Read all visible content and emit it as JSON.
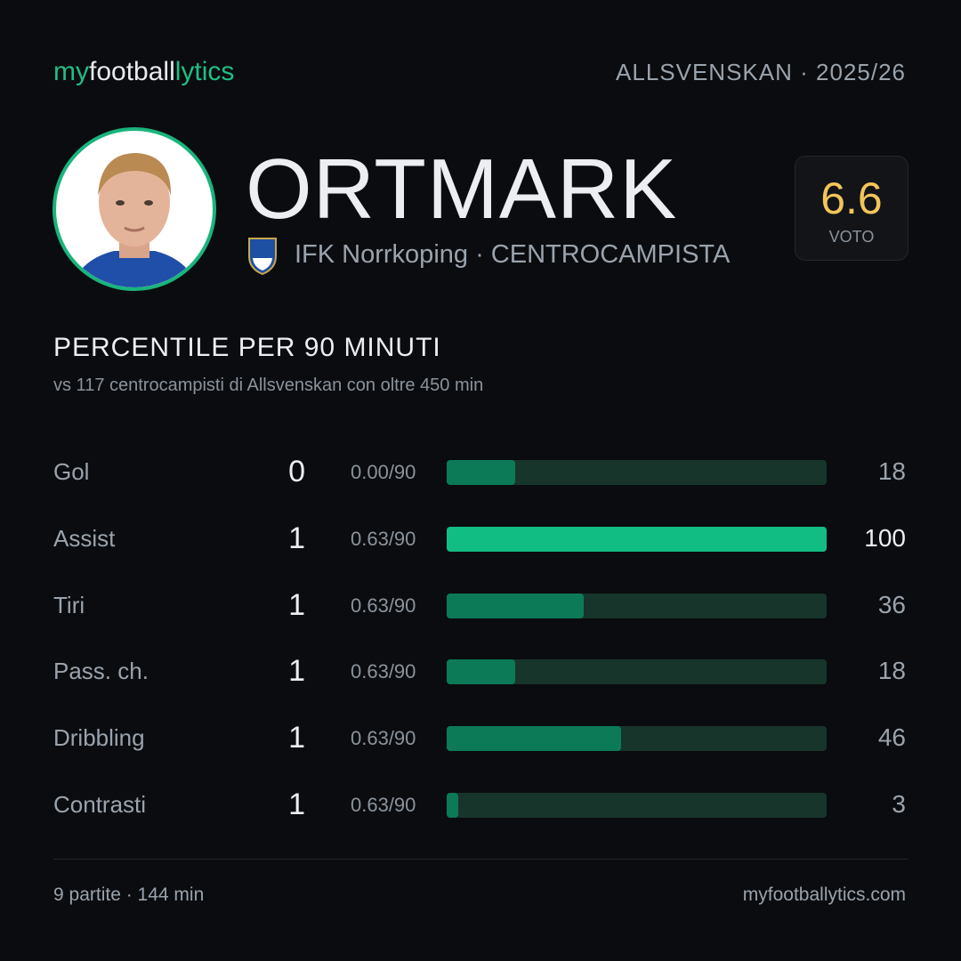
{
  "header": {
    "logo": [
      "my",
      "football",
      "lytics"
    ],
    "league": "ALLSVENSKAN",
    "season": "· 2025/26"
  },
  "player": {
    "name": "ORTMARK",
    "club": "IFK Norrkoping",
    "role": "· CENTROCAMPISTA",
    "rating": "6.6",
    "rating_label": "VOTO"
  },
  "section": {
    "title": "PERCENTILE  PER 90 MINUTI",
    "subtitle": "vs 117 centrocampisti  di Allsvenskan  con oltre 450 min"
  },
  "stats": {
    "bar_range": [
      0,
      100
    ],
    "rows": [
      {
        "label": "Gol",
        "count": 0,
        "per90": "0.00/90",
        "percentile": 18,
        "color": "#0d7a57"
      },
      {
        "label": "Assist",
        "count": 1,
        "per90": "0.63/90",
        "percentile": 100,
        "color": "#12bd84"
      },
      {
        "label": "Tiri",
        "count": 1,
        "per90": "0.63/90",
        "percentile": 36,
        "color": "#0d7a57"
      },
      {
        "label": "Pass. ch.",
        "count": 1,
        "per90": "0.63/90",
        "percentile": 18,
        "color": "#0d7a57"
      },
      {
        "label": "Dribbling",
        "count": 1,
        "per90": "0.63/90",
        "percentile": 46,
        "color": "#0d7a57"
      },
      {
        "label": "Contrasti",
        "count": 1,
        "per90": "0.63/90",
        "percentile": 3,
        "color": "#0d7a57"
      }
    ]
  },
  "footer": {
    "info": "9 partite · 144 min",
    "site": "myfootballytics.com"
  }
}
